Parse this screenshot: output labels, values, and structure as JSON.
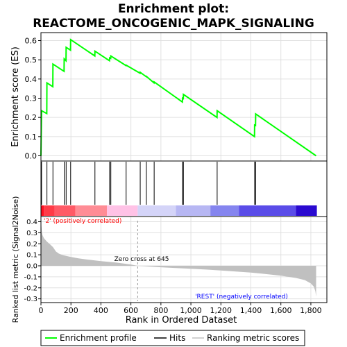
{
  "chart_data": {
    "type": "line",
    "title_line1": "Enrichment plot:",
    "title_line2": "REACTOME_ONCOGENIC_MAPK_SIGNALING",
    "xlabel": "Rank in Ordered Dataset",
    "es_ylabel": "Enrichment score (ES)",
    "metric_ylabel": "Ranked list metric (Signal2Noise)",
    "xlim": [
      0,
      1840
    ],
    "x_ticks": [
      0,
      200,
      400,
      600,
      800,
      1000,
      1200,
      1400,
      1600,
      1800
    ],
    "x_tick_labels": [
      "0",
      "200",
      "400",
      "600",
      "800",
      "1,000",
      "1,200",
      "1,400",
      "1,600",
      "1,800"
    ],
    "es_ylim": [
      0,
      0.62
    ],
    "es_ticks": [
      0.0,
      0.1,
      0.2,
      0.3,
      0.4,
      0.5,
      0.6
    ],
    "es_tick_labels": [
      "0.0",
      "0.1",
      "0.2",
      "0.3",
      "0.4",
      "0.5",
      "0.6"
    ],
    "metric_ylim": [
      -0.3,
      0.4
    ],
    "metric_ticks": [
      -0.3,
      -0.2,
      -0.1,
      0.0,
      0.1,
      0.2,
      0.3,
      0.4
    ],
    "metric_tick_labels": [
      "-0.3",
      "-0.2",
      "-0.1",
      "0.0",
      "0.1",
      "0.2",
      "0.3",
      "0.4"
    ],
    "hits": [
      4,
      40,
      80,
      155,
      168,
      198,
      360,
      458,
      466,
      568,
      662,
      703,
      755,
      944,
      950,
      1175,
      1425,
      1432
    ],
    "es_curve": [
      [
        0,
        0.0
      ],
      [
        4,
        0.235
      ],
      [
        39,
        0.22
      ],
      [
        40,
        0.38
      ],
      [
        79,
        0.36
      ],
      [
        80,
        0.478
      ],
      [
        154,
        0.44
      ],
      [
        155,
        0.505
      ],
      [
        167,
        0.495
      ],
      [
        168,
        0.565
      ],
      [
        197,
        0.55
      ],
      [
        198,
        0.605
      ],
      [
        359,
        0.52
      ],
      [
        360,
        0.545
      ],
      [
        457,
        0.495
      ],
      [
        458,
        0.51
      ],
      [
        465,
        0.508
      ],
      [
        466,
        0.52
      ],
      [
        567,
        0.47
      ],
      [
        568,
        0.472
      ],
      [
        661,
        0.43
      ],
      [
        662,
        0.435
      ],
      [
        702,
        0.412
      ],
      [
        703,
        0.414
      ],
      [
        754,
        0.38
      ],
      [
        755,
        0.385
      ],
      [
        943,
        0.28
      ],
      [
        944,
        0.3
      ],
      [
        949,
        0.298
      ],
      [
        950,
        0.32
      ],
      [
        1174,
        0.2
      ],
      [
        1175,
        0.235
      ],
      [
        1424,
        0.1
      ],
      [
        1425,
        0.16
      ],
      [
        1431,
        0.158
      ],
      [
        1432,
        0.218
      ],
      [
        1835,
        0.0
      ]
    ],
    "metric_curve": [
      [
        0,
        0.41
      ],
      [
        5,
        0.32
      ],
      [
        10,
        0.28
      ],
      [
        20,
        0.25
      ],
      [
        40,
        0.22
      ],
      [
        60,
        0.195
      ],
      [
        80,
        0.17
      ],
      [
        100,
        0.13
      ],
      [
        120,
        0.11
      ],
      [
        150,
        0.095
      ],
      [
        200,
        0.08
      ],
      [
        250,
        0.068
      ],
      [
        300,
        0.058
      ],
      [
        400,
        0.043
      ],
      [
        500,
        0.03
      ],
      [
        600,
        0.012
      ],
      [
        645,
        0.0
      ],
      [
        700,
        -0.005
      ],
      [
        800,
        -0.013
      ],
      [
        900,
        -0.02
      ],
      [
        1000,
        -0.027
      ],
      [
        1100,
        -0.034
      ],
      [
        1200,
        -0.043
      ],
      [
        1300,
        -0.052
      ],
      [
        1400,
        -0.062
      ],
      [
        1500,
        -0.075
      ],
      [
        1600,
        -0.09
      ],
      [
        1700,
        -0.11
      ],
      [
        1760,
        -0.13
      ],
      [
        1800,
        -0.16
      ],
      [
        1820,
        -0.19
      ],
      [
        1830,
        -0.23
      ],
      [
        1835,
        -0.28
      ]
    ],
    "zero_cross": 645,
    "zero_cross_label": "Zero cross at 645",
    "pos_label": "'2' (positively correlated)",
    "neg_label": "'REST' (negatively correlated)",
    "legend": [
      "Enrichment profile",
      "Hits",
      "Ranking metric scores"
    ],
    "colors": {
      "es_line": "#00ff00",
      "hits": "#000000",
      "metric_fill": "#c0c0c0",
      "pos_text": "#ff0000",
      "neg_text": "#0000ff",
      "gridline": "#e0e0e0"
    },
    "heat_bands": [
      {
        "from": 0,
        "to": 20,
        "color": "#ff1020"
      },
      {
        "from": 20,
        "to": 90,
        "color": "#ff3b47"
      },
      {
        "from": 90,
        "to": 230,
        "color": "#ff5a66"
      },
      {
        "from": 230,
        "to": 440,
        "color": "#ff8c95"
      },
      {
        "from": 440,
        "to": 645,
        "color": "#ffc2e6"
      },
      {
        "from": 645,
        "to": 900,
        "color": "#d4d4f8"
      },
      {
        "from": 900,
        "to": 1130,
        "color": "#b7b7f3"
      },
      {
        "from": 1130,
        "to": 1320,
        "color": "#8585ef"
      },
      {
        "from": 1320,
        "to": 1700,
        "color": "#5a4ce8"
      },
      {
        "from": 1700,
        "to": 1840,
        "color": "#2a0ad0"
      }
    ]
  }
}
